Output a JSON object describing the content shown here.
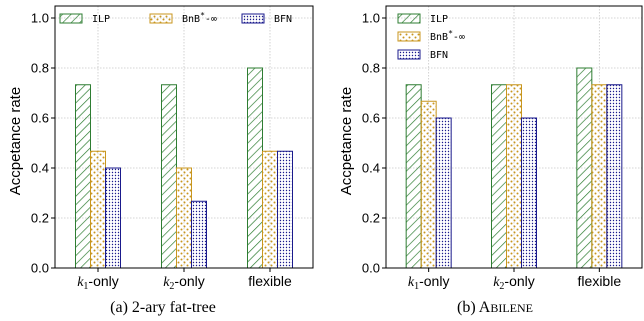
{
  "chart_data": [
    {
      "type": "bar",
      "caption": "(a) 2-ary fat-tree",
      "ylabel": "Accpetance rate",
      "xlabel": "",
      "ylim": [
        0,
        1.0
      ],
      "yticks": [
        "0.0",
        "0.2",
        "0.4",
        "0.6",
        "0.8",
        "1.0"
      ],
      "grid": true,
      "legend_position": "top, horizontal",
      "categories": [
        "k1-only",
        "k2-only",
        "flexible"
      ],
      "series": [
        {
          "name": "ILP",
          "values": [
            0.733,
            0.733,
            0.8
          ],
          "color": "#2e7d32",
          "pattern": "hatch"
        },
        {
          "name": "BnB*-∞",
          "values": [
            0.467,
            0.4,
            0.467
          ],
          "color": "#c8961e",
          "pattern": "dots"
        },
        {
          "name": "BFN",
          "values": [
            0.4,
            0.267,
            0.467
          ],
          "color": "#1a1a8c",
          "pattern": "dense-dots"
        }
      ]
    },
    {
      "type": "bar",
      "caption": "(b) ABILENE",
      "ylabel": "Accpetance rate",
      "xlabel": "",
      "ylim": [
        0,
        1.0
      ],
      "yticks": [
        "0.0",
        "0.2",
        "0.4",
        "0.6",
        "0.8",
        "1.0"
      ],
      "grid": true,
      "legend_position": "top-left, vertical",
      "categories": [
        "k1-only",
        "k2-only",
        "flexible"
      ],
      "series": [
        {
          "name": "ILP",
          "values": [
            0.733,
            0.733,
            0.8
          ],
          "color": "#2e7d32",
          "pattern": "hatch"
        },
        {
          "name": "BnB*-∞",
          "values": [
            0.667,
            0.733,
            0.733
          ],
          "color": "#c8961e",
          "pattern": "dots"
        },
        {
          "name": "BFN",
          "values": [
            0.6,
            0.6,
            0.733
          ],
          "color": "#1a1a8c",
          "pattern": "dense-dots"
        }
      ]
    }
  ]
}
